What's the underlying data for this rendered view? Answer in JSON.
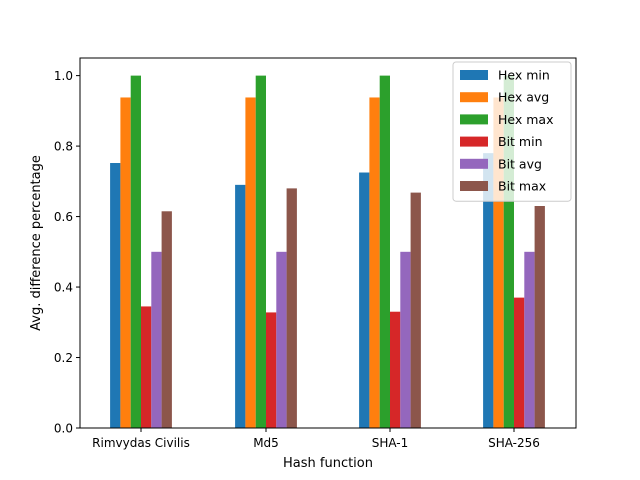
{
  "chart_data": {
    "type": "bar",
    "title": "",
    "xlabel": "Hash function",
    "ylabel": "Avg. difference percentage",
    "ylim": [
      0,
      1.05
    ],
    "yticks": [
      "0.0",
      "0.2",
      "0.4",
      "0.6",
      "0.8",
      "1.0"
    ],
    "grid": false,
    "legend_position": "top-right",
    "categories": [
      "Rimvydas Civilis",
      "Md5",
      "SHA-1",
      "SHA-256"
    ],
    "series": [
      {
        "name": "Hex min",
        "color": "#1f77b4",
        "values": [
          0.752,
          0.69,
          0.725,
          0.78
        ]
      },
      {
        "name": "Hex avg",
        "color": "#ff7f0e",
        "values": [
          0.938,
          0.938,
          0.938,
          0.938
        ]
      },
      {
        "name": "Hex max",
        "color": "#2ca02c",
        "values": [
          1.0,
          1.0,
          1.0,
          1.0
        ]
      },
      {
        "name": "Bit min",
        "color": "#d62728",
        "values": [
          0.345,
          0.328,
          0.33,
          0.37
        ]
      },
      {
        "name": "Bit avg",
        "color": "#9467bd",
        "values": [
          0.5,
          0.5,
          0.5,
          0.5
        ]
      },
      {
        "name": "Bit max",
        "color": "#8c564b",
        "values": [
          0.615,
          0.68,
          0.668,
          0.63
        ]
      }
    ]
  }
}
